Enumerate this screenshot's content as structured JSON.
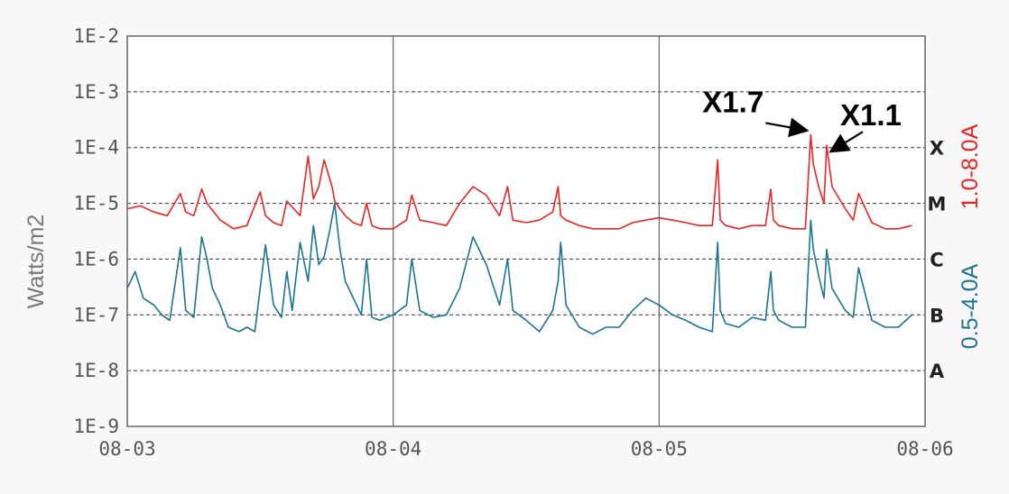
{
  "chart_data": {
    "type": "line",
    "ylabel": "Watts/m2",
    "y_scale": "log",
    "ylim": [
      1e-09,
      0.01
    ],
    "y_ticks": [
      {
        "value": 1e-09,
        "label": "1E-9"
      },
      {
        "value": 1e-08,
        "label": "1E-8"
      },
      {
        "value": 1e-07,
        "label": "1E-7"
      },
      {
        "value": 1e-06,
        "label": "1E-6"
      },
      {
        "value": 1e-05,
        "label": "1E-5"
      },
      {
        "value": 0.0001,
        "label": "1E-4"
      },
      {
        "value": 0.001,
        "label": "1E-3"
      },
      {
        "value": 0.01,
        "label": "1E-2"
      }
    ],
    "xlim": [
      "08-03",
      "08-06"
    ],
    "x_ticks": [
      "08-03",
      "08-04",
      "08-05",
      "08-06"
    ],
    "flare_classes": [
      {
        "label": "X",
        "value": 0.0001
      },
      {
        "label": "M",
        "value": 1e-05
      },
      {
        "label": "C",
        "value": 1e-06
      },
      {
        "label": "B",
        "value": 1e-07
      },
      {
        "label": "A",
        "value": 1e-08
      }
    ],
    "grid": "dashed horizontal at decades, solid vertical at day boundaries",
    "series": [
      {
        "name": "1.0-8.0A",
        "color": "#ee2222",
        "x_days": [
          0.0,
          0.05,
          0.1,
          0.15,
          0.2,
          0.22,
          0.25,
          0.28,
          0.3,
          0.35,
          0.4,
          0.45,
          0.5,
          0.52,
          0.55,
          0.58,
          0.6,
          0.65,
          0.68,
          0.7,
          0.72,
          0.74,
          0.77,
          0.78,
          0.8,
          0.82,
          0.85,
          0.88,
          0.9,
          0.92,
          0.95,
          1.0,
          1.05,
          1.07,
          1.1,
          1.15,
          1.2,
          1.25,
          1.3,
          1.35,
          1.4,
          1.43,
          1.45,
          1.5,
          1.55,
          1.6,
          1.62,
          1.63,
          1.65,
          1.7,
          1.75,
          1.8,
          1.85,
          1.9,
          1.95,
          2.0,
          2.05,
          2.1,
          2.15,
          2.2,
          2.22,
          2.23,
          2.25,
          2.3,
          2.35,
          2.4,
          2.42,
          2.43,
          2.45,
          2.5,
          2.55,
          2.57,
          2.58,
          2.6,
          2.62,
          2.63,
          2.65,
          2.7,
          2.73,
          2.75,
          2.8,
          2.85,
          2.9,
          2.95
        ],
        "values": [
          8e-06,
          9e-06,
          7e-06,
          6e-06,
          1.5e-05,
          7e-06,
          6e-06,
          1.8e-05,
          1e-05,
          5e-06,
          3.5e-06,
          4e-06,
          1.6e-05,
          6e-06,
          4.5e-06,
          4e-06,
          1.1e-05,
          6e-06,
          7e-05,
          1.2e-05,
          2e-05,
          6e-05,
          2e-05,
          1.1e-05,
          8e-06,
          6e-06,
          4.5e-06,
          4e-06,
          1e-05,
          4e-06,
          3.5e-06,
          3.5e-06,
          5e-06,
          1.4e-05,
          5e-06,
          4.5e-06,
          4e-06,
          1e-05,
          2e-05,
          1.4e-05,
          6e-06,
          2e-05,
          5e-06,
          4.5e-06,
          5e-06,
          7e-06,
          2e-05,
          6e-06,
          5e-06,
          4e-06,
          3.5e-06,
          3.5e-06,
          3.5e-06,
          4.5e-06,
          5e-06,
          5.5e-06,
          5e-06,
          4.5e-06,
          4e-06,
          4e-06,
          6e-05,
          5e-06,
          4e-06,
          3.5e-06,
          4e-06,
          4e-06,
          1.8e-05,
          5e-06,
          4e-06,
          3.5e-06,
          3.5e-06,
          0.00017,
          5e-05,
          2e-05,
          1e-05,
          0.00011,
          2e-05,
          8e-06,
          5e-06,
          1.5e-05,
          4.5e-06,
          3.5e-06,
          3.5e-06,
          4e-06
        ]
      },
      {
        "name": "0.5-4.0A",
        "color": "#1a7494",
        "x_days": [
          0.0,
          0.03,
          0.06,
          0.1,
          0.13,
          0.16,
          0.2,
          0.22,
          0.25,
          0.28,
          0.3,
          0.32,
          0.35,
          0.38,
          0.42,
          0.45,
          0.48,
          0.52,
          0.55,
          0.58,
          0.6,
          0.62,
          0.65,
          0.68,
          0.7,
          0.72,
          0.74,
          0.76,
          0.78,
          0.8,
          0.82,
          0.85,
          0.88,
          0.9,
          0.92,
          0.95,
          1.0,
          1.05,
          1.07,
          1.1,
          1.15,
          1.2,
          1.25,
          1.3,
          1.35,
          1.4,
          1.43,
          1.45,
          1.5,
          1.55,
          1.6,
          1.62,
          1.63,
          1.65,
          1.7,
          1.75,
          1.8,
          1.85,
          1.9,
          1.95,
          2.0,
          2.05,
          2.1,
          2.15,
          2.2,
          2.22,
          2.23,
          2.25,
          2.3,
          2.35,
          2.4,
          2.42,
          2.43,
          2.45,
          2.5,
          2.55,
          2.57,
          2.58,
          2.6,
          2.62,
          2.63,
          2.65,
          2.7,
          2.73,
          2.75,
          2.8,
          2.85,
          2.9,
          2.95
        ],
        "values": [
          3e-07,
          6e-07,
          2e-07,
          1.5e-07,
          1e-07,
          8e-08,
          1.6e-06,
          1.2e-07,
          9e-08,
          2.5e-06,
          1e-06,
          3e-07,
          1.5e-07,
          6e-08,
          5e-08,
          6e-08,
          5e-08,
          1.8e-06,
          1.5e-07,
          9e-08,
          6e-07,
          1.2e-07,
          2e-06,
          4e-07,
          4e-06,
          8e-07,
          1.1e-06,
          3e-06,
          1e-05,
          1.5e-06,
          4e-07,
          2e-07,
          1e-07,
          1e-06,
          9e-08,
          8e-08,
          1e-07,
          1.5e-07,
          1e-06,
          1.2e-07,
          9e-08,
          1e-07,
          3e-07,
          2.5e-06,
          8e-07,
          1.5e-07,
          1e-06,
          1.2e-07,
          8e-08,
          5e-08,
          1.2e-07,
          4e-07,
          2e-06,
          1.5e-07,
          6e-08,
          4.5e-08,
          6e-08,
          6e-08,
          1.2e-07,
          2e-07,
          1.5e-07,
          1e-07,
          8e-08,
          6e-08,
          5e-08,
          2e-06,
          1.2e-07,
          7e-08,
          6e-08,
          9e-08,
          8e-08,
          6e-07,
          1.2e-07,
          8e-08,
          6e-08,
          6e-08,
          5e-06,
          1.5e-06,
          5e-07,
          2e-07,
          1.5e-06,
          3e-07,
          1.2e-07,
          9e-08,
          7e-07,
          8e-08,
          6e-08,
          6e-08,
          1e-07
        ]
      }
    ],
    "annotations": [
      {
        "text": "X1.7",
        "x_day": 2.57,
        "value": 0.00017
      },
      {
        "text": "X1.1",
        "x_day": 2.63,
        "value": 0.00011
      }
    ]
  }
}
